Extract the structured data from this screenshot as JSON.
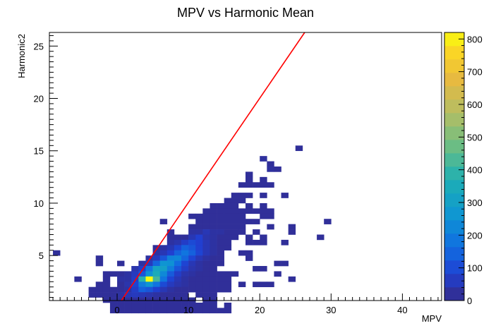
{
  "chart_data": {
    "type": "heatmap",
    "title": "MPV vs Harmonic Mean",
    "xlabel": "MPV",
    "ylabel": "Harmonic2",
    "xlim": [
      -9.5,
      45.5
    ],
    "ylim": [
      0.7,
      26.3
    ],
    "xticks": [
      0,
      10,
      20,
      30,
      40
    ],
    "xtick_labels": [
      "0",
      "10",
      "20",
      "30",
      "40"
    ],
    "yticks": [
      5,
      10,
      15,
      20,
      25
    ],
    "ytick_labels": [
      "5",
      "10",
      "15",
      "20",
      "25"
    ],
    "bin_size": [
      1.0,
      0.5
    ],
    "colorbar": {
      "min": 0,
      "max": 820,
      "ticks": [
        0,
        100,
        200,
        300,
        400,
        500,
        600,
        700,
        800
      ],
      "tick_labels": [
        "0",
        "100",
        "200",
        "300",
        "400",
        "500",
        "600",
        "700",
        "800"
      ]
    },
    "fit_line": {
      "x": [
        0.6,
        26.3
      ],
      "y": [
        0.7,
        26.3
      ]
    },
    "cells": [
      [
        25,
        26,
        20
      ],
      [
        20,
        24,
        25
      ],
      [
        21,
        23,
        20
      ],
      [
        21,
        22,
        25
      ],
      [
        22,
        22,
        20
      ],
      [
        18,
        21,
        20
      ],
      [
        18,
        20,
        20
      ],
      [
        20,
        20,
        20
      ],
      [
        17,
        19,
        20
      ],
      [
        18,
        19,
        20
      ],
      [
        19,
        19,
        20
      ],
      [
        20,
        19,
        20
      ],
      [
        21,
        19,
        20
      ],
      [
        16,
        17,
        20
      ],
      [
        17,
        17,
        20
      ],
      [
        18,
        17,
        20
      ],
      [
        20,
        17,
        20
      ],
      [
        23,
        17,
        20
      ],
      [
        15,
        16,
        20
      ],
      [
        16,
        16,
        20
      ],
      [
        17,
        16,
        20
      ],
      [
        14,
        15,
        20
      ],
      [
        15,
        15,
        20
      ],
      [
        16,
        15,
        20
      ],
      [
        13,
        15,
        20
      ],
      [
        18,
        15,
        20
      ],
      [
        20,
        15,
        20
      ],
      [
        12,
        14,
        20
      ],
      [
        13,
        14,
        20
      ],
      [
        14,
        14,
        20
      ],
      [
        15,
        14,
        20
      ],
      [
        16,
        14,
        20
      ],
      [
        17,
        14,
        20
      ],
      [
        18,
        14,
        20
      ],
      [
        19,
        14,
        20
      ],
      [
        20,
        14,
        20
      ],
      [
        21,
        14,
        20
      ],
      [
        11,
        13,
        20
      ],
      [
        12,
        13,
        20
      ],
      [
        13,
        13,
        20
      ],
      [
        14,
        13,
        20
      ],
      [
        15,
        13,
        20
      ],
      [
        16,
        13,
        20
      ],
      [
        17,
        13,
        20
      ],
      [
        20,
        13,
        20
      ],
      [
        21,
        13,
        20
      ],
      [
        10,
        13,
        20
      ],
      [
        11,
        12,
        20
      ],
      [
        12,
        12,
        20
      ],
      [
        13,
        12,
        20
      ],
      [
        14,
        12,
        20
      ],
      [
        15,
        12,
        20
      ],
      [
        16,
        12,
        20
      ],
      [
        17,
        12,
        20
      ],
      [
        18,
        12,
        20
      ],
      [
        19,
        12,
        20
      ],
      [
        29,
        12,
        20
      ],
      [
        6,
        12,
        20
      ],
      [
        10,
        11,
        20
      ],
      [
        11,
        11,
        20
      ],
      [
        12,
        11,
        20
      ],
      [
        13,
        11,
        20
      ],
      [
        14,
        11,
        20
      ],
      [
        15,
        11,
        20
      ],
      [
        16,
        11,
        20
      ],
      [
        17,
        11,
        20
      ],
      [
        21,
        11,
        20
      ],
      [
        24,
        11,
        20
      ],
      [
        10,
        10,
        30
      ],
      [
        11,
        10,
        30
      ],
      [
        12,
        10,
        50
      ],
      [
        13,
        10,
        30
      ],
      [
        14,
        10,
        30
      ],
      [
        15,
        10,
        20
      ],
      [
        16,
        10,
        20
      ],
      [
        17,
        10,
        20
      ],
      [
        24,
        10,
        20
      ],
      [
        7,
        10,
        20
      ],
      [
        19,
        10,
        20
      ],
      [
        8,
        9,
        20
      ],
      [
        9,
        9,
        20
      ],
      [
        10,
        9,
        50
      ],
      [
        11,
        9,
        80
      ],
      [
        12,
        9,
        40
      ],
      [
        13,
        9,
        30
      ],
      [
        14,
        9,
        20
      ],
      [
        15,
        9,
        20
      ],
      [
        7,
        9,
        20
      ],
      [
        16,
        9,
        20
      ],
      [
        18,
        9,
        20
      ],
      [
        20,
        9,
        20
      ],
      [
        28,
        9,
        20
      ],
      [
        7,
        8,
        30
      ],
      [
        8,
        8,
        40
      ],
      [
        9,
        8,
        70
      ],
      [
        10,
        8,
        100
      ],
      [
        11,
        8,
        80
      ],
      [
        12,
        8,
        50
      ],
      [
        13,
        8,
        30
      ],
      [
        14,
        8,
        20
      ],
      [
        15,
        8,
        20
      ],
      [
        18,
        8,
        20
      ],
      [
        19,
        8,
        20
      ],
      [
        20,
        8,
        20
      ],
      [
        23,
        8,
        20
      ],
      [
        5,
        7,
        20
      ],
      [
        6,
        7,
        30
      ],
      [
        7,
        7,
        50
      ],
      [
        8,
        7,
        90
      ],
      [
        9,
        7,
        140
      ],
      [
        10,
        7,
        120
      ],
      [
        11,
        7,
        80
      ],
      [
        12,
        7,
        50
      ],
      [
        13,
        7,
        30
      ],
      [
        14,
        7,
        20
      ],
      [
        15,
        7,
        20
      ],
      [
        5,
        6,
        30
      ],
      [
        6,
        6,
        50
      ],
      [
        7,
        6,
        80
      ],
      [
        8,
        6,
        140
      ],
      [
        9,
        6,
        180
      ],
      [
        10,
        6,
        140
      ],
      [
        11,
        6,
        90
      ],
      [
        12,
        6,
        50
      ],
      [
        13,
        6,
        30
      ],
      [
        14,
        6,
        20
      ],
      [
        17,
        6,
        20
      ],
      [
        18,
        6,
        20
      ],
      [
        -9,
        6,
        20
      ],
      [
        4,
        5,
        30
      ],
      [
        5,
        5,
        60
      ],
      [
        6,
        5,
        120
      ],
      [
        7,
        5,
        210
      ],
      [
        8,
        5,
        220
      ],
      [
        9,
        5,
        150
      ],
      [
        10,
        5,
        90
      ],
      [
        11,
        5,
        50
      ],
      [
        12,
        5,
        30
      ],
      [
        13,
        5,
        20
      ],
      [
        14,
        5,
        20
      ],
      [
        -3,
        5,
        20
      ],
      [
        18,
        5,
        20
      ],
      [
        3,
        4,
        30
      ],
      [
        4,
        4,
        60
      ],
      [
        5,
        4,
        150
      ],
      [
        6,
        4,
        260
      ],
      [
        7,
        4,
        250
      ],
      [
        8,
        4,
        160
      ],
      [
        9,
        4,
        90
      ],
      [
        10,
        4,
        50
      ],
      [
        11,
        4,
        30
      ],
      [
        12,
        4,
        20
      ],
      [
        13,
        4,
        20
      ],
      [
        14,
        4,
        20
      ],
      [
        -3,
        4,
        20
      ],
      [
        0,
        4,
        20
      ],
      [
        22,
        4,
        20
      ],
      [
        23,
        4,
        20
      ],
      [
        2,
        3,
        40
      ],
      [
        3,
        3,
        70
      ],
      [
        4,
        3,
        180
      ],
      [
        5,
        3,
        320
      ],
      [
        6,
        3,
        300
      ],
      [
        7,
        3,
        200
      ],
      [
        8,
        3,
        120
      ],
      [
        9,
        3,
        70
      ],
      [
        10,
        3,
        40
      ],
      [
        11,
        3,
        30
      ],
      [
        12,
        3,
        20
      ],
      [
        13,
        3,
        20
      ],
      [
        19,
        3,
        20
      ],
      [
        20,
        3,
        20
      ],
      [
        1,
        2,
        30
      ],
      [
        2,
        2,
        60
      ],
      [
        3,
        2,
        120
      ],
      [
        4,
        2,
        250
      ],
      [
        5,
        2,
        350
      ],
      [
        6,
        2,
        230
      ],
      [
        7,
        2,
        130
      ],
      [
        8,
        2,
        70
      ],
      [
        9,
        2,
        40
      ],
      [
        10,
        2,
        30
      ],
      [
        11,
        2,
        20
      ],
      [
        12,
        2,
        20
      ],
      [
        13,
        2,
        20
      ],
      [
        14,
        2,
        20
      ],
      [
        15,
        2,
        20
      ],
      [
        16,
        2,
        20
      ],
      [
        22,
        2,
        20
      ],
      [
        -2,
        2,
        20
      ],
      [
        -1,
        2,
        20
      ],
      [
        0,
        2,
        20
      ],
      [
        1,
        1,
        30
      ],
      [
        2,
        1,
        70
      ],
      [
        3,
        1,
        380
      ],
      [
        4,
        1,
        820
      ],
      [
        5,
        1,
        420
      ],
      [
        6,
        1,
        180
      ],
      [
        7,
        1,
        90
      ],
      [
        8,
        1,
        50
      ],
      [
        9,
        1,
        30
      ],
      [
        10,
        1,
        20
      ],
      [
        11,
        1,
        20
      ],
      [
        12,
        1,
        20
      ],
      [
        13,
        1,
        20
      ],
      [
        14,
        1,
        20
      ],
      [
        15,
        1,
        20
      ],
      [
        24,
        1,
        20
      ],
      [
        -6,
        1,
        20
      ],
      [
        -2,
        1,
        20
      ],
      [
        0,
        1,
        30
      ],
      [
        1,
        0,
        40
      ],
      [
        2,
        0,
        90
      ],
      [
        3,
        0,
        200
      ],
      [
        4,
        0,
        260
      ],
      [
        5,
        0,
        180
      ],
      [
        6,
        0,
        100
      ],
      [
        7,
        0,
        60
      ],
      [
        8,
        0,
        40
      ],
      [
        9,
        0,
        30
      ],
      [
        10,
        0,
        20
      ],
      [
        11,
        0,
        20
      ],
      [
        12,
        0,
        20
      ],
      [
        13,
        0,
        20
      ],
      [
        14,
        0,
        20
      ],
      [
        15,
        0,
        20
      ],
      [
        17,
        0,
        20
      ],
      [
        19,
        0,
        20
      ],
      [
        20,
        0,
        20
      ],
      [
        21,
        0,
        20
      ],
      [
        -3,
        0,
        20
      ],
      [
        -2,
        0,
        20
      ],
      [
        0,
        0,
        20
      ],
      [
        1,
        -1,
        30
      ],
      [
        2,
        -1,
        70
      ],
      [
        3,
        -1,
        140
      ],
      [
        4,
        -1,
        120
      ],
      [
        5,
        -1,
        80
      ],
      [
        6,
        -1,
        50
      ],
      [
        7,
        -1,
        30
      ],
      [
        8,
        -1,
        20
      ],
      [
        9,
        -1,
        20
      ],
      [
        10,
        -1,
        20
      ],
      [
        11,
        -1,
        20
      ],
      [
        12,
        -1,
        20
      ],
      [
        13,
        -1,
        20
      ],
      [
        14,
        -1,
        20
      ],
      [
        15,
        -1,
        20
      ],
      [
        -4,
        -1,
        20
      ],
      [
        -3,
        -1,
        20
      ],
      [
        -2,
        -1,
        20
      ],
      [
        -1,
        -1,
        20
      ],
      [
        0,
        -1,
        20
      ],
      [
        0,
        -2,
        30
      ],
      [
        1,
        -2,
        50
      ],
      [
        2,
        -2,
        60
      ],
      [
        3,
        -2,
        50
      ],
      [
        4,
        -2,
        40
      ],
      [
        5,
        -2,
        30
      ],
      [
        6,
        -2,
        20
      ],
      [
        7,
        -2,
        20
      ],
      [
        8,
        -2,
        20
      ],
      [
        9,
        -2,
        20
      ],
      [
        11,
        -2,
        20
      ],
      [
        12,
        -2,
        20
      ],
      [
        13,
        -2,
        20
      ],
      [
        -4,
        -2,
        20
      ],
      [
        -3,
        -2,
        20
      ],
      [
        -2,
        -2,
        20
      ],
      [
        -1,
        -2,
        20
      ],
      [
        0,
        -3,
        20
      ],
      [
        1,
        -3,
        20
      ],
      [
        2,
        -3,
        20
      ],
      [
        3,
        -3,
        20
      ],
      [
        4,
        -3,
        20
      ],
      [
        5,
        -3,
        20
      ],
      [
        6,
        -3,
        20
      ],
      [
        7,
        -3,
        20
      ],
      [
        8,
        -3,
        20
      ],
      [
        9,
        -3,
        20
      ],
      [
        10,
        -3,
        20
      ],
      [
        12,
        -3,
        20
      ],
      [
        13,
        -3,
        20
      ],
      [
        -2,
        -3,
        20
      ],
      [
        -1,
        -3,
        20
      ],
      [
        0,
        -4,
        20
      ],
      [
        1,
        -4,
        20
      ],
      [
        2,
        -4,
        20
      ],
      [
        3,
        -4,
        20
      ],
      [
        4,
        -4,
        20
      ],
      [
        5,
        -4,
        20
      ],
      [
        6,
        -4,
        20
      ],
      [
        7,
        -4,
        20
      ],
      [
        8,
        -4,
        20
      ],
      [
        9,
        -4,
        20
      ],
      [
        10,
        -4,
        20
      ],
      [
        11,
        -4,
        20
      ],
      [
        12,
        -4,
        20
      ],
      [
        13,
        -4,
        20
      ],
      [
        15,
        -4,
        20
      ],
      [
        -1,
        -4,
        20
      ],
      [
        0,
        -5,
        20
      ],
      [
        1,
        -5,
        20
      ],
      [
        2,
        -5,
        20
      ],
      [
        3,
        -5,
        20
      ],
      [
        4,
        -5,
        20
      ],
      [
        5,
        -5,
        20
      ],
      [
        6,
        -5,
        20
      ],
      [
        7,
        -5,
        20
      ],
      [
        8,
        -5,
        20
      ],
      [
        9,
        -5,
        20
      ],
      [
        10,
        -5,
        20
      ],
      [
        11,
        -5,
        20
      ],
      [
        12,
        -5,
        20
      ],
      [
        13,
        -5,
        20
      ],
      [
        14,
        -5,
        20
      ],
      [
        15,
        -5,
        20
      ],
      [
        -1,
        -5,
        20
      ]
    ]
  }
}
